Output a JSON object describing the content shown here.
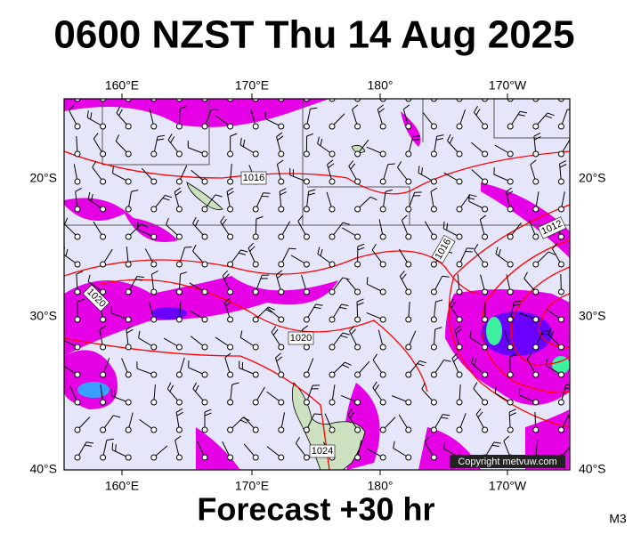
{
  "header": {
    "title": "0600 NZST Thu 14 Aug 2025"
  },
  "map": {
    "lon_labels_top": [
      "160°E",
      "170°E",
      "180°",
      "170°W"
    ],
    "lon_labels_bottom": [
      "160°E",
      "170°E",
      "180°",
      "170°W"
    ],
    "lat_labels_left": [
      "20°S",
      "30°S",
      "40°S"
    ],
    "lat_labels_right": [
      "20°S",
      "30°S",
      "40°S"
    ],
    "isobar_labels": [
      "1016",
      "1016",
      "1012",
      "1020",
      "1020",
      "1024"
    ],
    "copyright": "Copyright metvuw.com"
  },
  "footer": {
    "forecast": "Forecast +30 hr",
    "model": "M3"
  }
}
